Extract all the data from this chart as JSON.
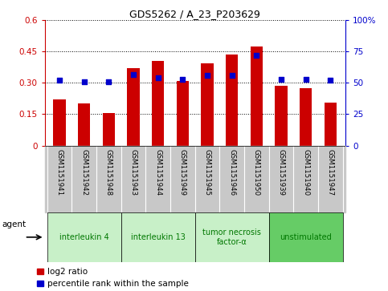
{
  "title": "GDS5262 / A_23_P203629",
  "samples": [
    "GSM1151941",
    "GSM1151942",
    "GSM1151948",
    "GSM1151943",
    "GSM1151944",
    "GSM1151949",
    "GSM1151945",
    "GSM1151946",
    "GSM1151950",
    "GSM1151939",
    "GSM1151940",
    "GSM1151947"
  ],
  "log2_ratio": [
    0.22,
    0.2,
    0.155,
    0.37,
    0.405,
    0.31,
    0.395,
    0.435,
    0.475,
    0.285,
    0.275,
    0.205
  ],
  "percentile": [
    52,
    51,
    51,
    57,
    54,
    53,
    56,
    56,
    72,
    53,
    53,
    52
  ],
  "bar_color": "#cc0000",
  "dot_color": "#0000cc",
  "ylim_left": [
    0,
    0.6
  ],
  "ylim_right": [
    0,
    100
  ],
  "yticks_left": [
    0,
    0.15,
    0.3,
    0.45,
    0.6
  ],
  "yticks_right": [
    0,
    25,
    50,
    75,
    100
  ],
  "ytick_labels_left": [
    "0",
    "0.15",
    "0.30",
    "0.45",
    "0.6"
  ],
  "ytick_labels_right": [
    "0",
    "25",
    "50",
    "75",
    "100%"
  ],
  "groups": [
    {
      "label": "interleukin 4",
      "start": 0,
      "end": 3,
      "color": "#c8f0c8"
    },
    {
      "label": "interleukin 13",
      "start": 3,
      "end": 6,
      "color": "#c8f0c8"
    },
    {
      "label": "tumor necrosis\nfactor-α",
      "start": 6,
      "end": 9,
      "color": "#c8f0c8"
    },
    {
      "label": "unstimulated",
      "start": 9,
      "end": 12,
      "color": "#66cc66"
    }
  ],
  "agent_label": "agent",
  "legend_log2": "log2 ratio",
  "legend_pct": "percentile rank within the sample",
  "bar_width": 0.5,
  "tick_area_color": "#c8c8c8",
  "group_text_color": "#007700",
  "title_fontsize": 9
}
